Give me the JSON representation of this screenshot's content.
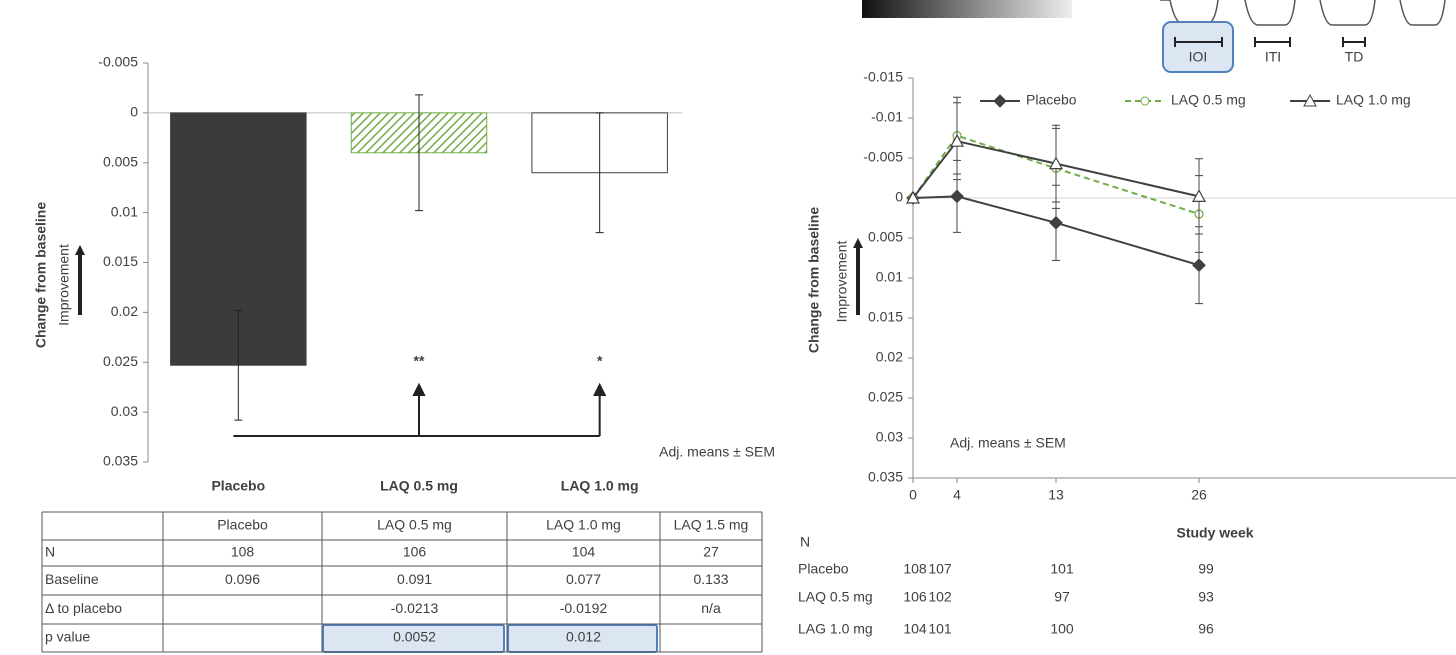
{
  "chart_data": [
    {
      "type": "bar",
      "y_label": "Change from baseline",
      "improvement_label": "Improvement",
      "annotation": "Adj. means ± SEM",
      "categories": [
        "Placebo",
        "LAQ 0.5 mg",
        "LAQ 1.0 mg"
      ],
      "values": [
        0.0253,
        0.004,
        0.006
      ],
      "errors": [
        0.0055,
        0.0058,
        0.006
      ],
      "colors": [
        "#3b3b3b",
        "#70ad47",
        "#ffffff"
      ],
      "hatch": [
        false,
        true,
        false
      ],
      "significance": [
        null,
        "**",
        "*"
      ],
      "significance_colors": [
        null,
        "#00b050",
        "#404040"
      ],
      "ylim": [
        -0.005,
        0.035
      ],
      "yticks": [
        -0.005,
        0,
        0.005,
        0.01,
        0.015,
        0.02,
        0.025,
        0.03,
        0.035
      ],
      "y_inverted": true
    },
    {
      "type": "line",
      "y_label": "Change from baseline",
      "improvement_label": "Improvement",
      "annotation": "Adj. means ± SEM",
      "x_label": "Study week",
      "x": [
        0,
        4,
        13,
        26
      ],
      "xlim": [
        0,
        49
      ],
      "xticks": [
        0,
        4,
        13,
        26
      ],
      "ylim": [
        -0.015,
        0.035
      ],
      "yticks": [
        -0.015,
        -0.01,
        -0.005,
        0,
        0.005,
        0.01,
        0.015,
        0.02,
        0.025,
        0.03,
        0.035
      ],
      "y_inverted": true,
      "zero_line": true,
      "series": [
        {
          "name": "Placebo",
          "color": "#404040",
          "marker": "diamond",
          "dashed": false,
          "values": [
            0,
            -0.0002,
            0.0031,
            0.0084
          ],
          "errors": [
            0,
            0.0045,
            0.0047,
            0.0048
          ]
        },
        {
          "name": "LAQ 0.5 mg",
          "color": "#70ad47",
          "marker": "circle",
          "dashed": true,
          "values": [
            0,
            -0.0078,
            -0.0037,
            0.002
          ],
          "errors": [
            0,
            0.0048,
            0.005,
            0.0048
          ]
        },
        {
          "name": "LAQ 1.0 mg",
          "color": "#404040",
          "marker": "triangle",
          "dashed": false,
          "values": [
            0,
            -0.0071,
            -0.0043,
            -0.0002
          ],
          "errors": [
            0,
            0.0048,
            0.0048,
            0.0047
          ]
        }
      ]
    }
  ],
  "table": {
    "header": [
      null,
      "Placebo",
      "LAQ 0.5 mg",
      "LAQ 1.0 mg",
      "LAQ 1.5 mg"
    ],
    "rows": [
      [
        "N",
        108,
        106,
        104,
        27
      ],
      [
        "Baseline",
        0.096,
        0.091,
        0.077,
        0.133
      ],
      [
        "Δ to placebo",
        null,
        -0.0213,
        -0.0192,
        "n/a"
      ],
      [
        "p value",
        null,
        0.0052,
        0.012,
        null
      ]
    ]
  },
  "n_table": {
    "title": "N",
    "rows": [
      {
        "label": "Placebo",
        "values": [
          108,
          107,
          101,
          99
        ]
      },
      {
        "label": "LAQ 0.5 mg",
        "values": [
          106,
          102,
          97,
          93
        ]
      },
      {
        "label": "LAG 1.0 mg",
        "values": [
          104,
          101,
          100,
          96
        ]
      }
    ]
  },
  "diagram": {
    "labels": [
      "IOI",
      "ITI",
      "TD"
    ]
  }
}
